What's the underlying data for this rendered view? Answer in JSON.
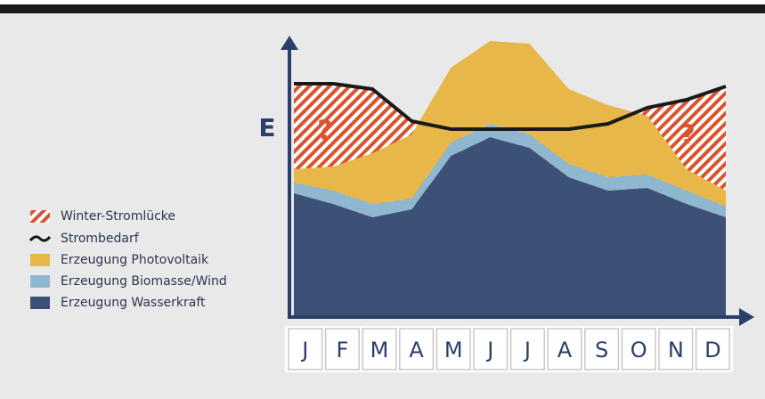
{
  "chart_data": {
    "type": "stacked_area",
    "y_label": "E",
    "categories": [
      "J",
      "F",
      "M",
      "A",
      "M",
      "J",
      "J",
      "A",
      "S",
      "O",
      "N",
      "D"
    ],
    "ylim": [
      0,
      100
    ],
    "series": [
      {
        "name": "Erzeugung Wasserkraft",
        "color": "#3d5078",
        "values": [
          46,
          42,
          37,
          40,
          60,
          67,
          63,
          52,
          47,
          48,
          42,
          37
        ]
      },
      {
        "name": "Erzeugung Biomasse/Wind",
        "color": "#8fb8d0",
        "values": [
          4,
          5,
          5,
          4,
          5,
          5,
          5,
          5,
          5,
          5,
          5,
          4
        ]
      },
      {
        "name": "Erzeugung Photovoltaik",
        "color": "#e8b74a",
        "values": [
          5,
          9,
          19,
          24,
          28,
          31,
          34,
          28,
          27,
          22,
          8,
          6
        ]
      }
    ],
    "demand": {
      "name": "Strombedarf",
      "color": "#1a1a1a",
      "values": [
        87,
        87,
        85,
        73,
        70,
        70,
        70,
        70,
        72,
        78,
        81,
        86
      ]
    },
    "gap": {
      "name": "Winter-Stromlücke",
      "color": "#d9532c"
    },
    "annotations": [
      "?",
      "?"
    ]
  }
}
